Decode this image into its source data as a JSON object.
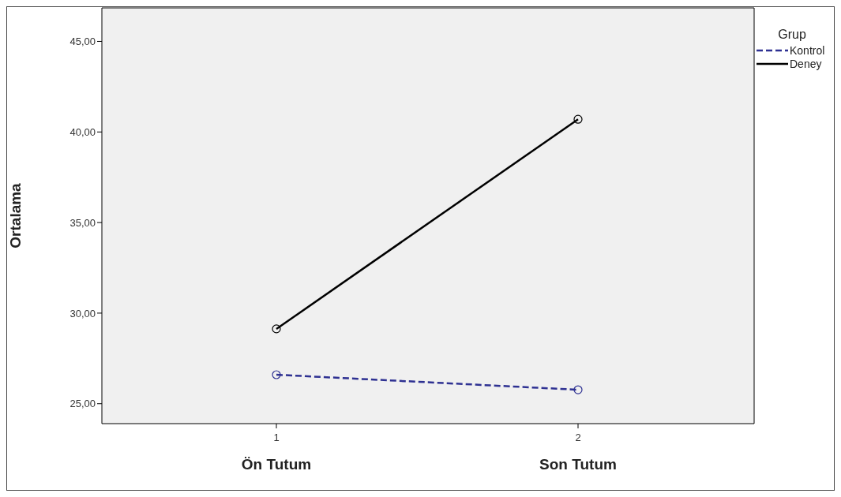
{
  "chart_data": {
    "type": "line",
    "ylabel": "Ortalama",
    "legend_title": "Grup",
    "categories": [
      "1",
      "2"
    ],
    "series": [
      {
        "name": "Kontrol",
        "color": "#2e3192",
        "line_style": "dashed",
        "values": [
          26.6,
          25.77
        ]
      },
      {
        "name": "Deney",
        "color": "#000000",
        "line_style": "solid",
        "values": [
          29.13,
          40.7
        ]
      }
    ],
    "ylim": [
      23.9,
      46.85
    ],
    "yticks": [
      {
        "value": 25,
        "label": "25,00"
      },
      {
        "value": 30,
        "label": "30,00"
      },
      {
        "value": 35,
        "label": "35,00"
      },
      {
        "value": 40,
        "label": "40,00"
      },
      {
        "value": 45,
        "label": "45,00"
      }
    ],
    "annotations": [
      "Ön Tutum",
      "Son Tutum"
    ],
    "marker": "circle",
    "legend": "top right"
  }
}
